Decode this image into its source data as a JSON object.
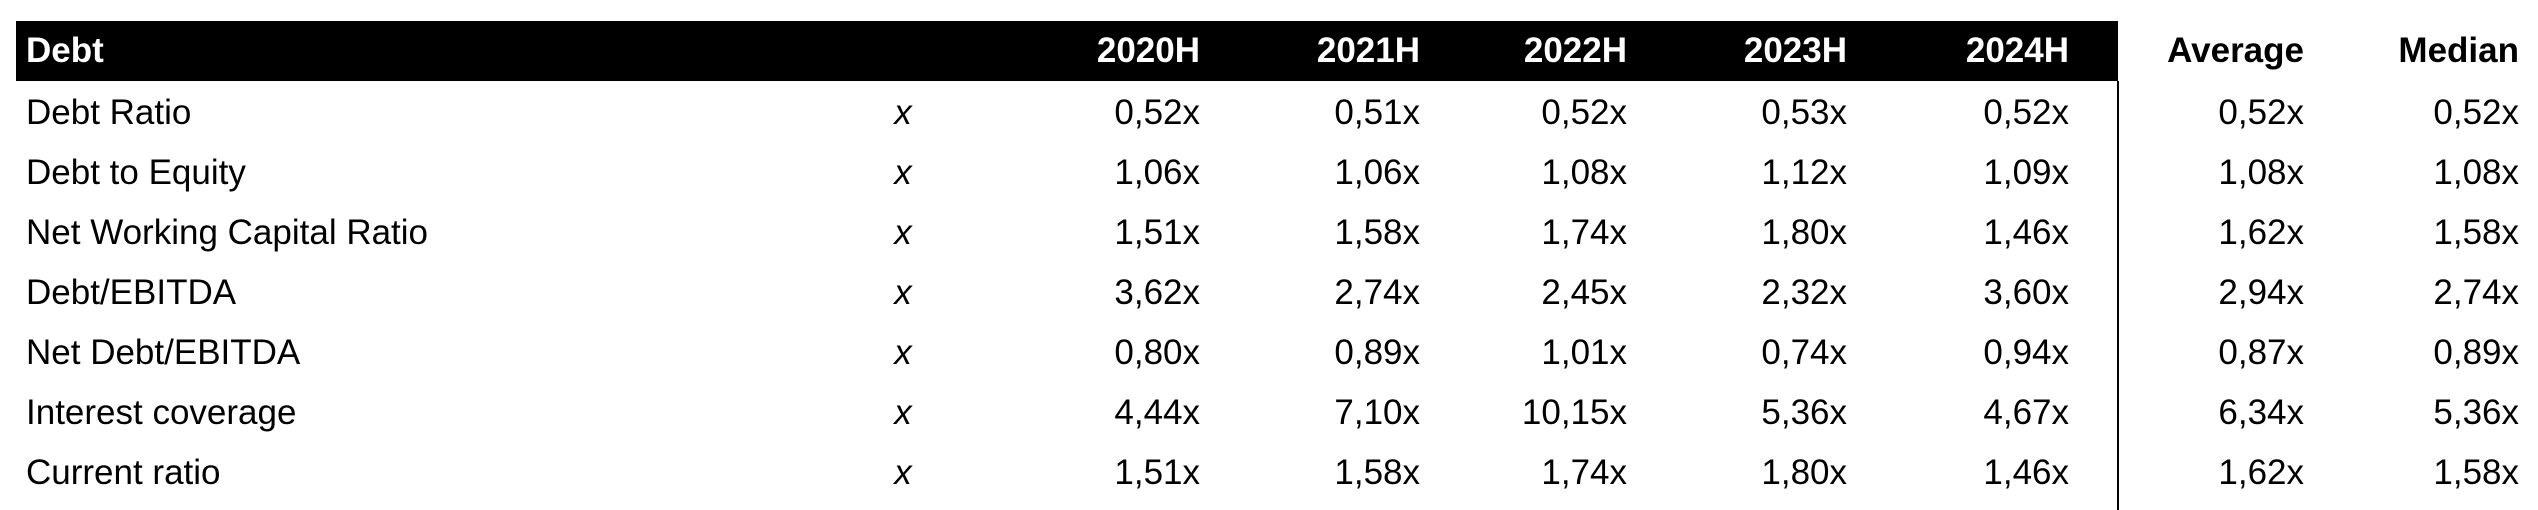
{
  "table": {
    "title": "Debt",
    "columns": [
      "2020H",
      "2021H",
      "2022H",
      "2023H",
      "2024H",
      "Average",
      "Median"
    ],
    "rows": [
      {
        "label": "Debt Ratio",
        "unit": "x",
        "values": [
          "0,52x",
          "0,51x",
          "0,52x",
          "0,53x",
          "0,52x",
          "0,52x",
          "0,52x"
        ]
      },
      {
        "label": "Debt to Equity",
        "unit": "x",
        "values": [
          "1,06x",
          "1,06x",
          "1,08x",
          "1,12x",
          "1,09x",
          "1,08x",
          "1,08x"
        ]
      },
      {
        "label": "Net Working Capital Ratio",
        "unit": "x",
        "values": [
          "1,51x",
          "1,58x",
          "1,74x",
          "1,80x",
          "1,46x",
          "1,62x",
          "1,58x"
        ]
      },
      {
        "label": "Debt/EBITDA",
        "unit": "x",
        "values": [
          "3,62x",
          "2,74x",
          "2,45x",
          "2,32x",
          "3,60x",
          "2,94x",
          "2,74x"
        ]
      },
      {
        "label": "Net Debt/EBITDA",
        "unit": "x",
        "values": [
          "0,80x",
          "0,89x",
          "1,01x",
          "0,74x",
          "0,94x",
          "0,87x",
          "0,89x"
        ]
      },
      {
        "label": "Interest coverage",
        "unit": "x",
        "values": [
          "4,44x",
          "7,10x",
          "10,15x",
          "5,36x",
          "4,67x",
          "6,34x",
          "5,36x"
        ]
      },
      {
        "label": "Current ratio",
        "unit": "x",
        "values": [
          "1,51x",
          "1,58x",
          "1,74x",
          "1,80x",
          "1,46x",
          "1,62x",
          "1,58x"
        ]
      }
    ]
  }
}
